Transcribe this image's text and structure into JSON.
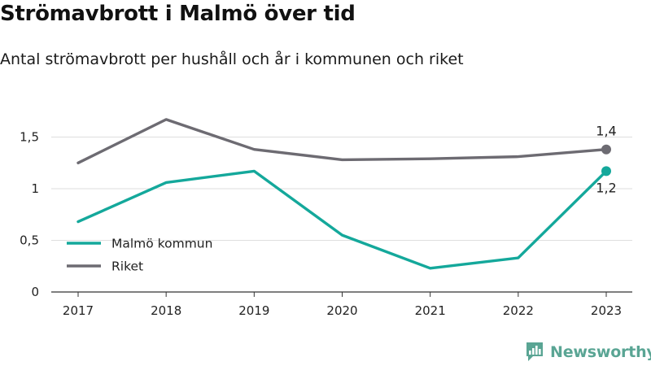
{
  "header": {
    "title": "Strömavbrott i Malmö över tid",
    "subtitle": "Antal strömavbrott per hushåll och år i kommunen och riket"
  },
  "brand": {
    "name": "Newsworthy",
    "icon": "newsworthy-logo-icon",
    "color": "#5aa594"
  },
  "chart_data": {
    "type": "line",
    "title": "Strömavbrott i Malmö över tid",
    "subtitle": "Antal strömavbrott per hushåll och år i kommunen och riket",
    "xlabel": "",
    "ylabel": "",
    "x": [
      "2017",
      "2018",
      "2019",
      "2020",
      "2021",
      "2022",
      "2023"
    ],
    "ylim": [
      0,
      1.75
    ],
    "yticks": [
      0,
      0.5,
      1,
      1.5
    ],
    "ytick_labels": [
      "0",
      "0,5",
      "1",
      "1,5"
    ],
    "grid": "horizontal",
    "legend_position": "bottom-left",
    "series": [
      {
        "name": "Malmö kommun",
        "color": "#14a89b",
        "values": [
          0.68,
          1.06,
          1.17,
          0.55,
          0.23,
          0.33,
          1.17
        ],
        "end_label": "1,2",
        "end_label_position": "below"
      },
      {
        "name": "Riket",
        "color": "#6d6b72",
        "values": [
          1.25,
          1.67,
          1.38,
          1.28,
          1.29,
          1.31,
          1.38
        ],
        "end_label": "1,4",
        "end_label_position": "above"
      }
    ]
  }
}
